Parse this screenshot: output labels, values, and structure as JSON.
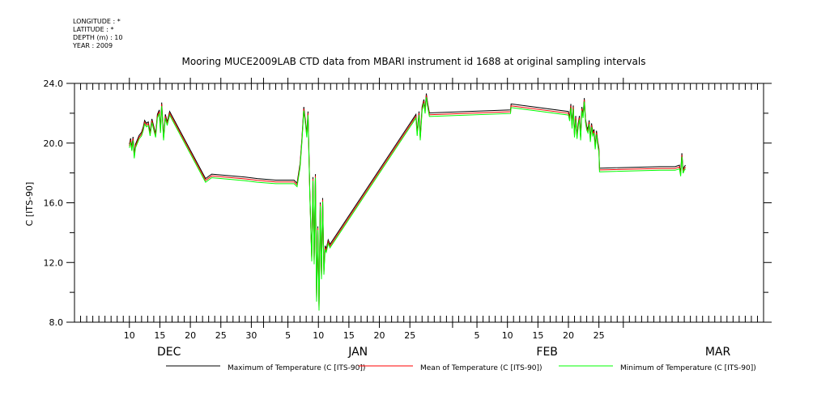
{
  "header": {
    "meta_lines": [
      "LONGITUDE : *",
      "LATITUDE : *",
      "DEPTH (m) : 10",
      "YEAR : 2009"
    ]
  },
  "chart_data": {
    "type": "line",
    "title": "Mooring MUCE2009LAB CTD data from MBARI instrument id 1688 at original sampling intervals",
    "ylabel": "C [ITS-90]",
    "xlabel": "",
    "ylim": [
      8.0,
      24.0
    ],
    "yticks": [
      "8.0",
      "12.0",
      "16.0",
      "20.0",
      "24.0"
    ],
    "xlim": [
      0,
      113
    ],
    "x_unit": "days from Dec 1",
    "xtick_labels": [
      {
        "x": 9,
        "label": "10"
      },
      {
        "x": 14,
        "label": "15"
      },
      {
        "x": 19,
        "label": "20"
      },
      {
        "x": 24,
        "label": "25"
      },
      {
        "x": 29,
        "label": "30"
      },
      {
        "x": 35,
        "label": "5"
      },
      {
        "x": 40,
        "label": "10"
      },
      {
        "x": 45,
        "label": "15"
      },
      {
        "x": 50,
        "label": "20"
      },
      {
        "x": 55,
        "label": "25"
      },
      {
        "x": 66,
        "label": "5"
      },
      {
        "x": 71,
        "label": "10"
      },
      {
        "x": 76,
        "label": "15"
      },
      {
        "x": 81,
        "label": "20"
      },
      {
        "x": 86,
        "label": "25"
      }
    ],
    "month_labels": [
      {
        "x": 15.5,
        "label": "DEC"
      },
      {
        "x": 46.5,
        "label": "JAN"
      },
      {
        "x": 77.5,
        "label": "FEB"
      },
      {
        "x": 105.5,
        "label": "MAR"
      }
    ],
    "legend": [
      "Maximum of Temperature (C [ITS-90])",
      "Mean of Temperature (C [ITS-90])",
      "Minimum of Temperature (C [ITS-90])"
    ],
    "series": [
      {
        "name": "Maximum of Temperature (C [ITS-90])",
        "color": "#000000",
        "offset": 0.12
      },
      {
        "name": "Mean of Temperature (C [ITS-90])",
        "color": "#ff0000",
        "offset": 0.0
      },
      {
        "name": "Minimum of Temperature (C [ITS-90])",
        "color": "#00ff00",
        "offset": -0.12
      }
    ],
    "mean_values": {
      "x": [
        9.0,
        9.2,
        9.4,
        9.6,
        9.8,
        10.0,
        10.3,
        10.6,
        11.0,
        11.3,
        11.5,
        11.8,
        12.1,
        12.4,
        12.7,
        13.0,
        13.3,
        13.6,
        13.9,
        14.1,
        14.3,
        14.6,
        14.9,
        15.2,
        15.6,
        21.5,
        22.5,
        28,
        30,
        33,
        36,
        36.5,
        37,
        37.3,
        37.6,
        37.9,
        38.1,
        38.3,
        38.6,
        38.9,
        39.1,
        39.3,
        39.5,
        39.7,
        39.9,
        40.1,
        40.3,
        40.5,
        40.7,
        40.9,
        41.1,
        41.3,
        41.6,
        41.9,
        56.0,
        56.2,
        56.5,
        56.7,
        57.0,
        57.3,
        57.5,
        57.7,
        57.9,
        58.2,
        71.5,
        71.6,
        81.0,
        81.2,
        81.4,
        81.6,
        81.8,
        82.0,
        82.2,
        82.4,
        82.6,
        82.8,
        83.0,
        83.2,
        83.4,
        83.6,
        83.8,
        84.0,
        84.2,
        84.4,
        84.6,
        84.8,
        85.0,
        85.2,
        85.4,
        85.6,
        85.8,
        86.0,
        86.1,
        86.3,
        96.0,
        97.5,
        98.5,
        99.2,
        99.4,
        99.6,
        99.8,
        100.0,
        100.2
      ],
      "y": [
        19.8,
        20.2,
        19.6,
        20.3,
        19.1,
        19.8,
        20.1,
        20.4,
        20.6,
        21.0,
        21.4,
        21.2,
        21.3,
        20.6,
        21.5,
        21.0,
        20.5,
        21.8,
        22.1,
        20.8,
        22.6,
        20.3,
        21.8,
        21.3,
        22.0,
        17.5,
        17.8,
        17.6,
        17.5,
        17.4,
        17.4,
        17.2,
        18.5,
        20.2,
        22.3,
        21.3,
        20.5,
        22.0,
        16.5,
        12.2,
        17.6,
        12.0,
        17.8,
        9.5,
        14.3,
        8.9,
        15.9,
        11.0,
        16.2,
        11.3,
        13.0,
        12.8,
        13.4,
        13.1,
        21.8,
        20.6,
        22.0,
        20.3,
        22.3,
        22.8,
        22.1,
        23.2,
        22.6,
        21.9,
        22.1,
        22.5,
        22.0,
        21.6,
        22.5,
        21.1,
        22.4,
        20.5,
        21.7,
        20.4,
        21.2,
        21.7,
        20.3,
        22.3,
        21.8,
        22.9,
        21.5,
        21.0,
        20.8,
        21.4,
        20.2,
        21.2,
        20.6,
        20.8,
        19.7,
        20.7,
        20.0,
        19.5,
        18.2,
        18.2,
        18.3,
        18.3,
        18.3,
        18.4,
        17.9,
        19.2,
        18.1,
        18.3,
        18.4
      ]
    }
  }
}
